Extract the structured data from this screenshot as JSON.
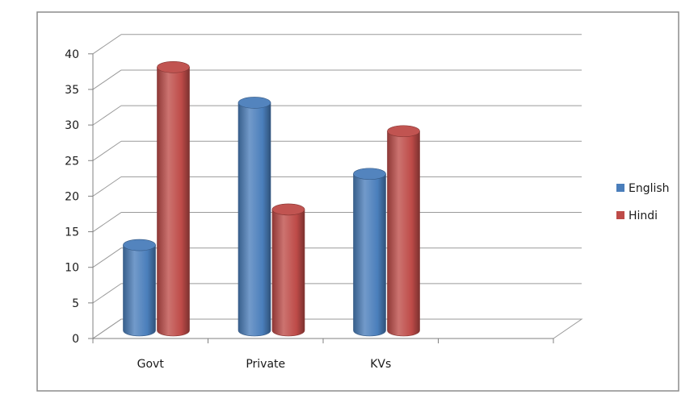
{
  "chart_data": {
    "type": "bar",
    "style": "3d-cylinder",
    "categories": [
      "Govt",
      "Private",
      "KVs"
    ],
    "series": [
      {
        "name": "English",
        "values": [
          12,
          32,
          22
        ],
        "color": "#4a7ebb"
      },
      {
        "name": "Hindi",
        "values": [
          37,
          17,
          28
        ],
        "color": "#be4b48"
      }
    ],
    "y_ticks": [
      "0",
      "5",
      "10",
      "15",
      "20",
      "25",
      "30",
      "35",
      "40"
    ],
    "ylim": [
      0,
      40
    ],
    "grid": true,
    "legend_position": "right",
    "title": "",
    "xlabel": "",
    "ylabel": ""
  }
}
